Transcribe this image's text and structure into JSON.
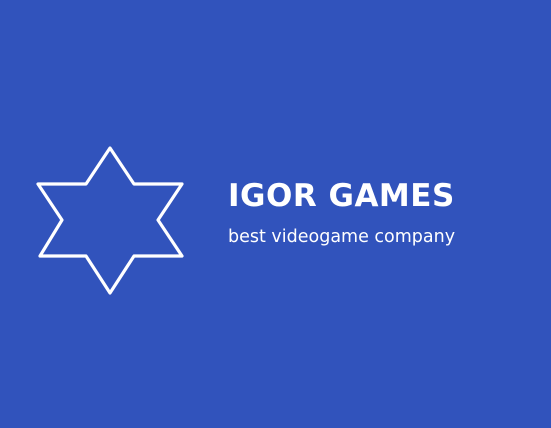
{
  "colors": {
    "background": "#3153bc",
    "foreground": "#ffffff"
  },
  "logo": {
    "icon": "six-pointed-star-icon",
    "name": "IGOR GAMES",
    "tagline": "best videogame company"
  }
}
